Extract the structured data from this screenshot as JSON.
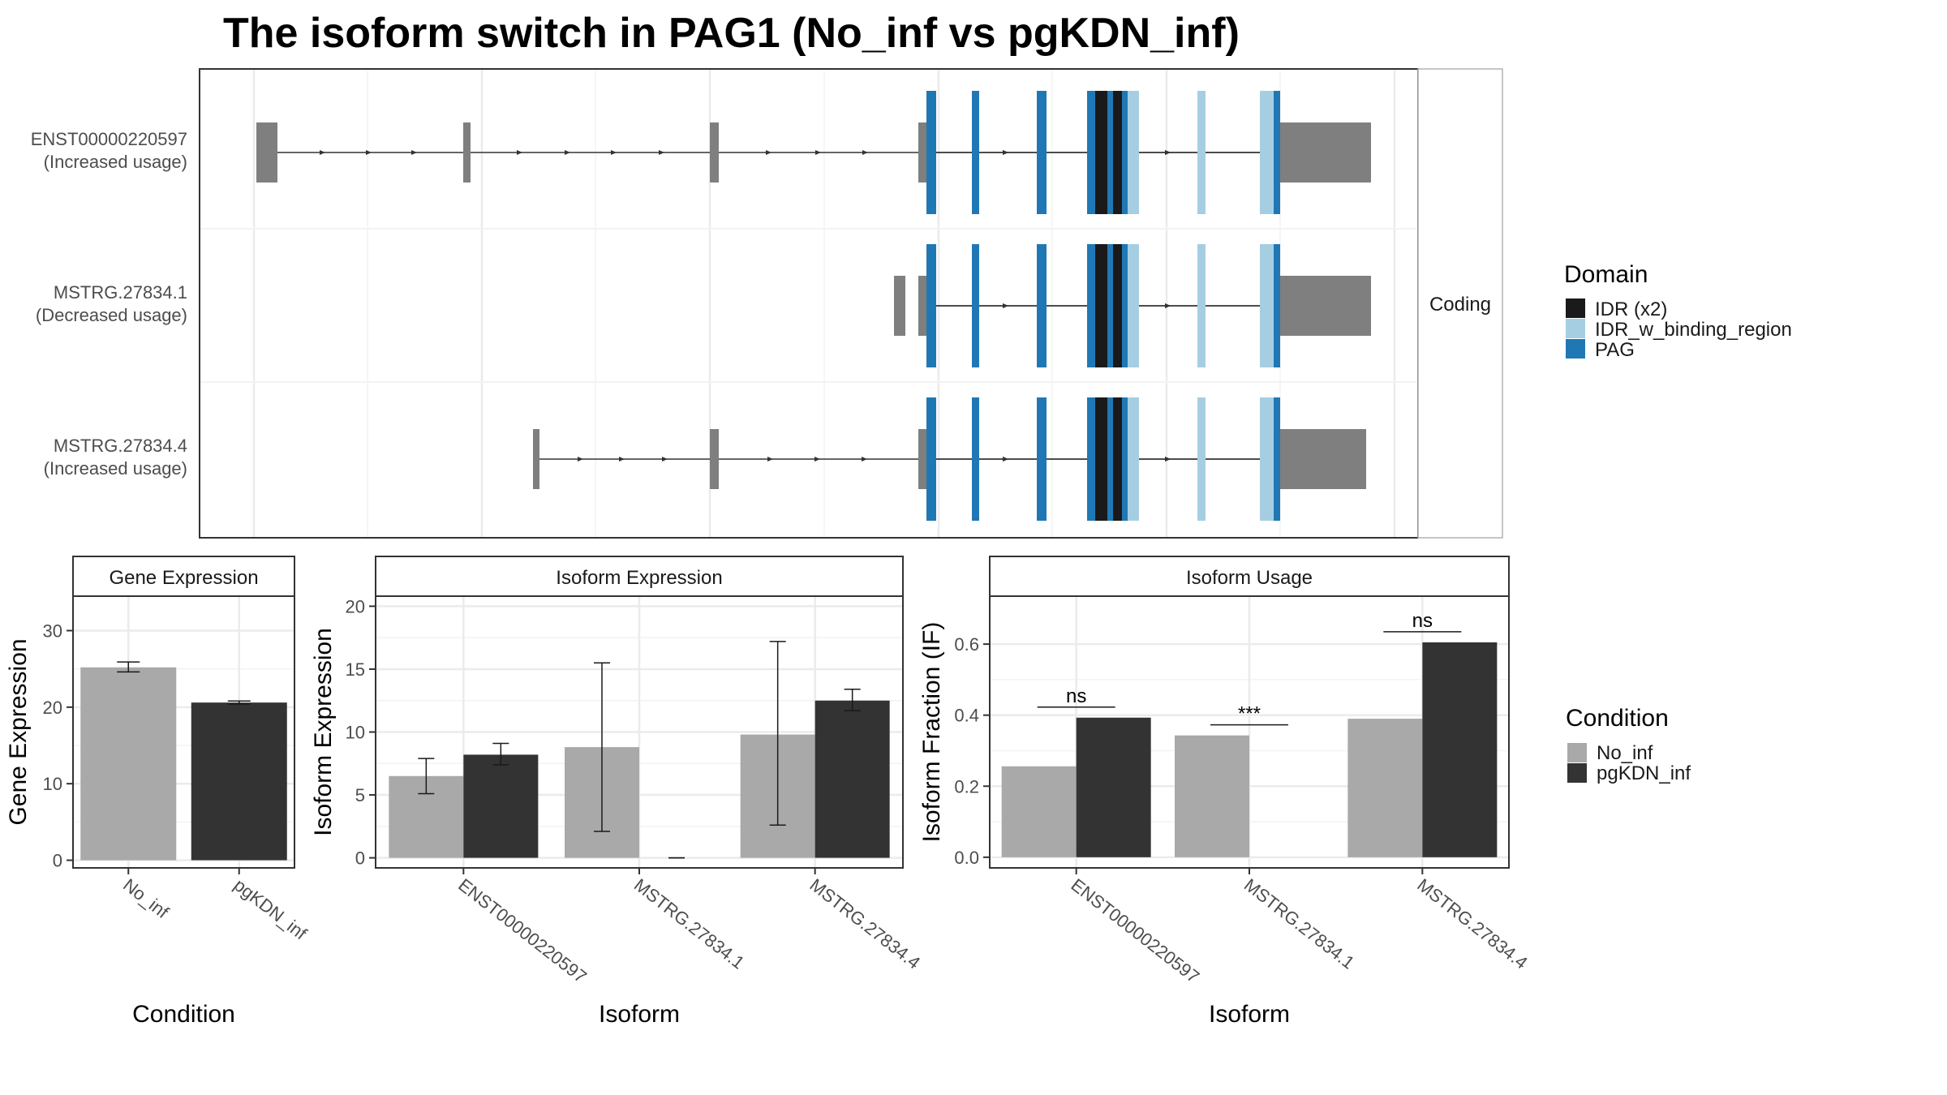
{
  "title": "The isoform switch in PAG1 (No_inf vs pgKDN_inf)",
  "structure": {
    "facet_label": "Coding",
    "isoforms": [
      {
        "id": "ENST00000220597",
        "usage": "(Increased usage)"
      },
      {
        "id": "MSTRG.27834.1",
        "usage": "(Decreased usage)"
      },
      {
        "id": "MSTRG.27834.4",
        "usage": "(Increased usage)"
      }
    ]
  },
  "legend_domain": {
    "title": "Domain",
    "items": [
      {
        "label": "IDR (x2)",
        "color": "#1a1a1a"
      },
      {
        "label": "IDR_w_binding_region",
        "color": "#a6cee3"
      },
      {
        "label": "PAG",
        "color": "#1f78b4"
      }
    ]
  },
  "legend_condition": {
    "title": "Condition",
    "items": [
      {
        "label": "No_inf",
        "color": "#a9a9a9"
      },
      {
        "label": "pgKDN_inf",
        "color": "#333333"
      }
    ]
  },
  "chart_data": [
    {
      "type": "bar",
      "title": "Gene Expression",
      "xlabel": "Condition",
      "ylabel": "Gene Expression",
      "categories": [
        "No_inf",
        "pgKDN_inf"
      ],
      "values": [
        25.2,
        20.6
      ],
      "errors": [
        [
          24.6,
          25.9
        ],
        [
          20.4,
          20.8
        ]
      ],
      "ylim": [
        -1,
        34.5
      ],
      "yticks": [
        0,
        10,
        20,
        30
      ],
      "grid": true
    },
    {
      "type": "bar",
      "title": "Isoform Expression",
      "xlabel": "Isoform",
      "ylabel": "Isoform Expression",
      "categories": [
        "ENST00000220597",
        "MSTRG.27834.1",
        "MSTRG.27834.4"
      ],
      "series": [
        {
          "name": "No_inf",
          "values": [
            6.5,
            8.8,
            9.8
          ],
          "errors": [
            [
              5.1,
              7.9
            ],
            [
              2.1,
              15.5
            ],
            [
              2.6,
              17.2
            ]
          ]
        },
        {
          "name": "pgKDN_inf",
          "values": [
            8.2,
            0,
            12.5
          ],
          "errors": [
            [
              7.4,
              9.1
            ],
            [
              0,
              0
            ],
            [
              11.7,
              13.4
            ]
          ]
        }
      ],
      "ylim": [
        -0.8,
        20.8
      ],
      "yticks": [
        0,
        5,
        10,
        15,
        20
      ],
      "grid": true
    },
    {
      "type": "bar",
      "title": "Isoform Usage",
      "xlabel": "Isoform",
      "ylabel": "Isoform Fraction (IF)",
      "categories": [
        "ENST00000220597",
        "MSTRG.27834.1",
        "MSTRG.27834.4"
      ],
      "series": [
        {
          "name": "No_inf",
          "values": [
            0.256,
            0.343,
            0.39
          ]
        },
        {
          "name": "pgKDN_inf",
          "values": [
            0.393,
            0,
            0.605
          ]
        }
      ],
      "significance": [
        "ns",
        "***",
        "ns"
      ],
      "ylim": [
        -0.03,
        0.735
      ],
      "yticks": [
        0.0,
        0.2,
        0.4,
        0.6
      ],
      "grid": true
    }
  ]
}
